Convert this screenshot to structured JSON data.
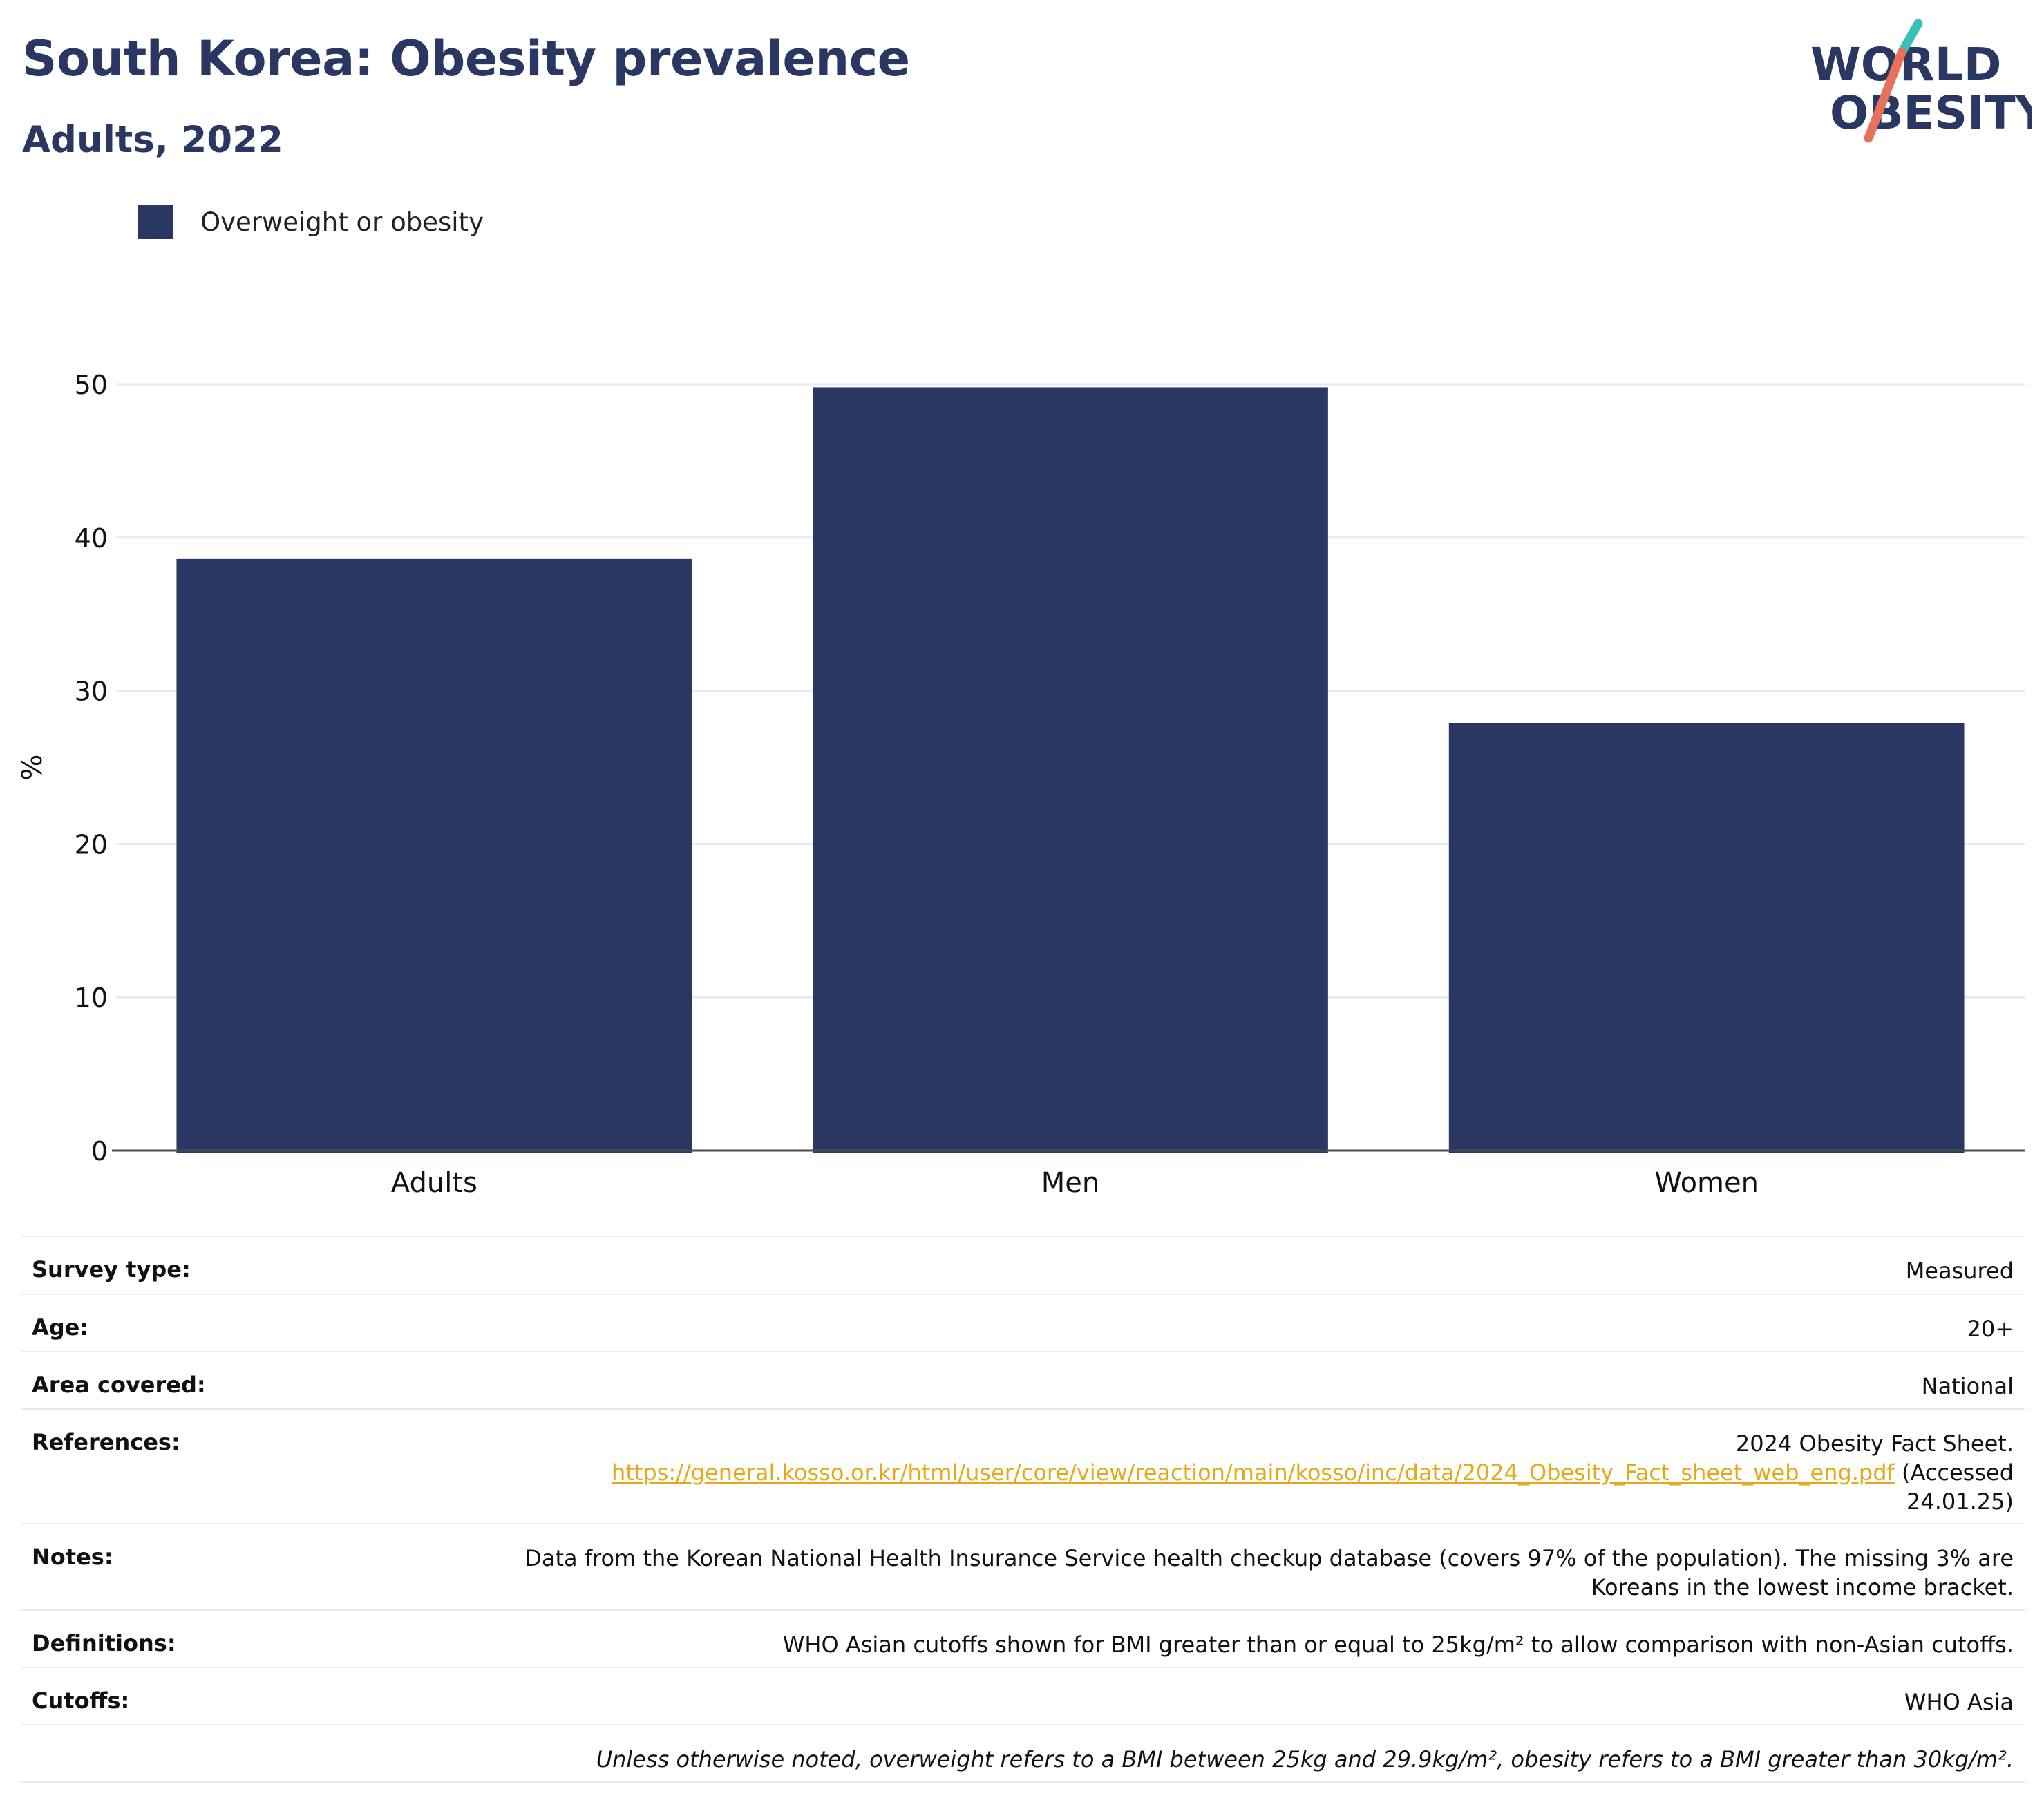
{
  "header": {
    "title": "South Korea: Obesity prevalence",
    "subtitle": "Adults, 2022"
  },
  "logo": {
    "line1": "WORLD",
    "line2": "OBESITY",
    "text_color": "#2b3763",
    "slash_teal": "#3bbfb7",
    "slash_coral": "#e8715c"
  },
  "legend": {
    "items": [
      {
        "label": "Overweight or obesity",
        "color": "#2b3763"
      }
    ]
  },
  "chart_data": {
    "type": "bar",
    "categories": [
      "Adults",
      "Men",
      "Women"
    ],
    "series": [
      {
        "name": "Overweight or obesity",
        "values": [
          38.6,
          49.8,
          27.9
        ],
        "color": "#2b3763"
      }
    ],
    "title": "South Korea: Obesity prevalence",
    "subtitle": "Adults, 2022",
    "xlabel": "",
    "ylabel": "%",
    "ylim": [
      0,
      50
    ],
    "yticks": [
      0,
      10,
      20,
      30,
      40,
      50
    ],
    "grid": true,
    "legend_position": "top-left"
  },
  "info": {
    "survey_type": {
      "label": "Survey type:",
      "value": "Measured"
    },
    "age": {
      "label": "Age:",
      "value": "20+"
    },
    "area": {
      "label": "Area covered:",
      "value": "National"
    },
    "references": {
      "label": "References:",
      "text": "2024 Obesity Fact Sheet.",
      "link": "https://general.kosso.or.kr/html/user/core/view/reaction/main/kosso/inc/data/2024_Obesity_Fact_sheet_web_eng.pdf",
      "accessed_prefix": "(Accessed",
      "accessed_date": "24.01.25)"
    },
    "notes": {
      "label": "Notes:",
      "line1": "Data from the Korean National Health Insurance Service health checkup database (covers 97% of the population). The missing 3% are",
      "line2": "Koreans in the lowest income bracket."
    },
    "definitions": {
      "label": "Definitions:",
      "value": "WHO Asian cutoffs shown for BMI greater than or equal to 25kg/m² to allow comparison with non-Asian cutoffs."
    },
    "cutoffs": {
      "label": "Cutoffs:",
      "value": "WHO Asia"
    },
    "footnote": "Unless otherwise noted, overweight refers to a BMI between 25kg and 29.9kg/m², obesity refers to a BMI greater than 30kg/m²."
  }
}
